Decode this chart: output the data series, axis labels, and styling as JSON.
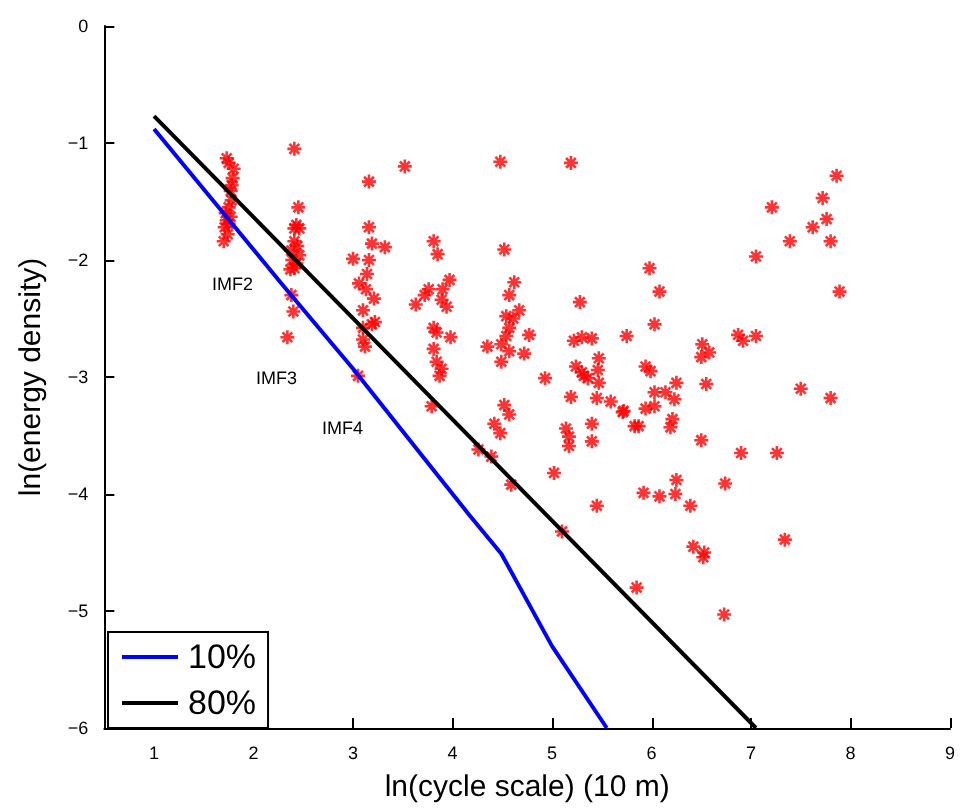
{
  "chart_data": {
    "type": "scatter",
    "xlabel": "ln(cycle scale) (10 m)",
    "ylabel": "ln(energy density)",
    "xlim": [
      0.5,
      9
    ],
    "xticks": [
      1,
      2,
      3,
      4,
      5,
      6,
      7,
      8,
      9
    ],
    "ylim": [
      -6,
      0
    ],
    "yticks": [
      -6,
      -5,
      -4,
      -3,
      -2,
      -1,
      0
    ],
    "grid": false,
    "legend": "bottom left",
    "marker": "cross",
    "annotations": [
      "IMF2",
      "IMF3",
      "IMF4"
    ],
    "series": [
      {
        "color": "#ff0000",
        "x": [
          1.73,
          1.75,
          1.78,
          1.77,
          1.78,
          1.75,
          1.72,
          1.77,
          1.73,
          1.75,
          1.71,
          1.7,
          1.8,
          1.79,
          1.74,
          2.41,
          2.45,
          2.43,
          2.41,
          2.46,
          2.41,
          2.44,
          2.38,
          2.46,
          2.39,
          2.43,
          2.37,
          2.41,
          2.38,
          2.4,
          2.34,
          3.16,
          3.52,
          4.48,
          5.19,
          3.16,
          3.19,
          3.32,
          3.0,
          3.16,
          3.14,
          3.06,
          3.13,
          3.21,
          3.1,
          3.1,
          3.19,
          3.22,
          3.1,
          3.12,
          3.05,
          3.81,
          3.85,
          3.76,
          3.72,
          3.63,
          3.9,
          3.89,
          3.97,
          3.94,
          3.81,
          3.84,
          3.98,
          3.81,
          3.84,
          3.89,
          3.87,
          3.79,
          4.52,
          4.62,
          4.57,
          4.67,
          4.54,
          4.61,
          4.57,
          4.54,
          4.49,
          4.57,
          4.49,
          4.77,
          4.72,
          4.35,
          4.93,
          4.52,
          4.57,
          4.42,
          4.48,
          4.26,
          4.39,
          4.59,
          5.02,
          7.86,
          7.21,
          7.72,
          7.62,
          7.76,
          7.39,
          7.8,
          7.05,
          7.89,
          5.98,
          6.08,
          6.03,
          6.51,
          6.58,
          6.5,
          6.87,
          6.92,
          7.05,
          6.55,
          7.5,
          7.8,
          6.9,
          7.26,
          6.74,
          7.34,
          6.5,
          6.25,
          6.23,
          6.14,
          6.03,
          6.03,
          5.94,
          6.21,
          6.19,
          5.87,
          5.94,
          5.99,
          5.71,
          5.59,
          5.75,
          6.25,
          5.92,
          6.08,
          6.24,
          6.39,
          6.42,
          6.53,
          6.52,
          5.85,
          6.73,
          5.45,
          5.1,
          5.45,
          5.4,
          5.4,
          5.19,
          5.14,
          5.17,
          5.17,
          5.28,
          5.22,
          5.3,
          5.4,
          5.47,
          5.24,
          5.3,
          5.36,
          5.47,
          5.32,
          5.46,
          5.72,
          5.83
        ],
        "values": [
          -1.13,
          -1.17,
          -1.36,
          -1.41,
          -1.49,
          -1.55,
          -1.6,
          -1.63,
          -1.66,
          -1.69,
          -1.72,
          -1.84,
          -1.22,
          -1.3,
          -1.78,
          -1.05,
          -1.55,
          -1.7,
          -1.73,
          -1.73,
          -1.84,
          -1.88,
          -1.92,
          -1.96,
          -2.0,
          -2.03,
          -2.08,
          -2.07,
          -2.3,
          -2.44,
          -2.66,
          -1.33,
          -1.2,
          -1.16,
          -1.17,
          -1.72,
          -1.86,
          -1.89,
          -1.99,
          -2.0,
          -2.12,
          -2.2,
          -2.25,
          -2.33,
          -2.43,
          -2.58,
          -2.55,
          -2.53,
          -2.68,
          -2.74,
          -2.99,
          -1.84,
          -1.95,
          -2.25,
          -2.3,
          -2.38,
          -2.25,
          -2.34,
          -2.17,
          -2.4,
          -2.58,
          -2.62,
          -2.66,
          -2.76,
          -2.87,
          -2.93,
          -2.99,
          -3.25,
          -1.91,
          -2.19,
          -2.3,
          -2.43,
          -2.48,
          -2.5,
          -2.58,
          -2.65,
          -2.72,
          -2.78,
          -2.87,
          -2.64,
          -2.8,
          -2.74,
          -3.01,
          -3.24,
          -3.32,
          -3.4,
          -3.48,
          -3.62,
          -3.68,
          -3.92,
          -3.82,
          -1.28,
          -1.55,
          -1.47,
          -1.72,
          -1.65,
          -1.84,
          -1.84,
          -1.97,
          -2.27,
          -2.07,
          -2.27,
          -2.55,
          -2.72,
          -2.79,
          -2.83,
          -2.64,
          -2.69,
          -2.65,
          -3.06,
          -3.1,
          -3.18,
          -3.65,
          -3.65,
          -3.91,
          -4.39,
          -3.54,
          -3.05,
          -3.19,
          -3.13,
          -3.13,
          -3.25,
          -3.27,
          -3.36,
          -3.43,
          -3.42,
          -2.91,
          -2.95,
          -3.3,
          -3.21,
          -2.65,
          -3.88,
          -3.99,
          -4.02,
          -4.0,
          -4.1,
          -4.45,
          -4.5,
          -4.54,
          -4.8,
          -5.03,
          -4.1,
          -4.32,
          -3.18,
          -3.4,
          -3.55,
          -3.17,
          -3.44,
          -3.51,
          -3.59,
          -2.36,
          -2.69,
          -2.66,
          -2.67,
          -2.84,
          -2.91,
          -2.96,
          -3.01,
          -3.05,
          -2.99,
          -2.94,
          -3.29,
          -3.42
        ]
      },
      {
        "type": "line",
        "marker": "none",
        "name": "10%",
        "color": "#0000ff",
        "x": [
          1,
          2.28,
          3.0,
          3.84,
          4.16,
          4.49,
          5.0,
          5.55
        ],
        "values": [
          -0.88,
          -2.2,
          -2.93,
          -3.83,
          -4.17,
          -4.51,
          -5.3,
          -6
        ]
      },
      {
        "type": "line",
        "marker": "none",
        "name": "80%",
        "color": "#000000",
        "x": [
          1,
          7.05
        ],
        "values": [
          -0.77,
          -6
        ]
      }
    ]
  }
}
